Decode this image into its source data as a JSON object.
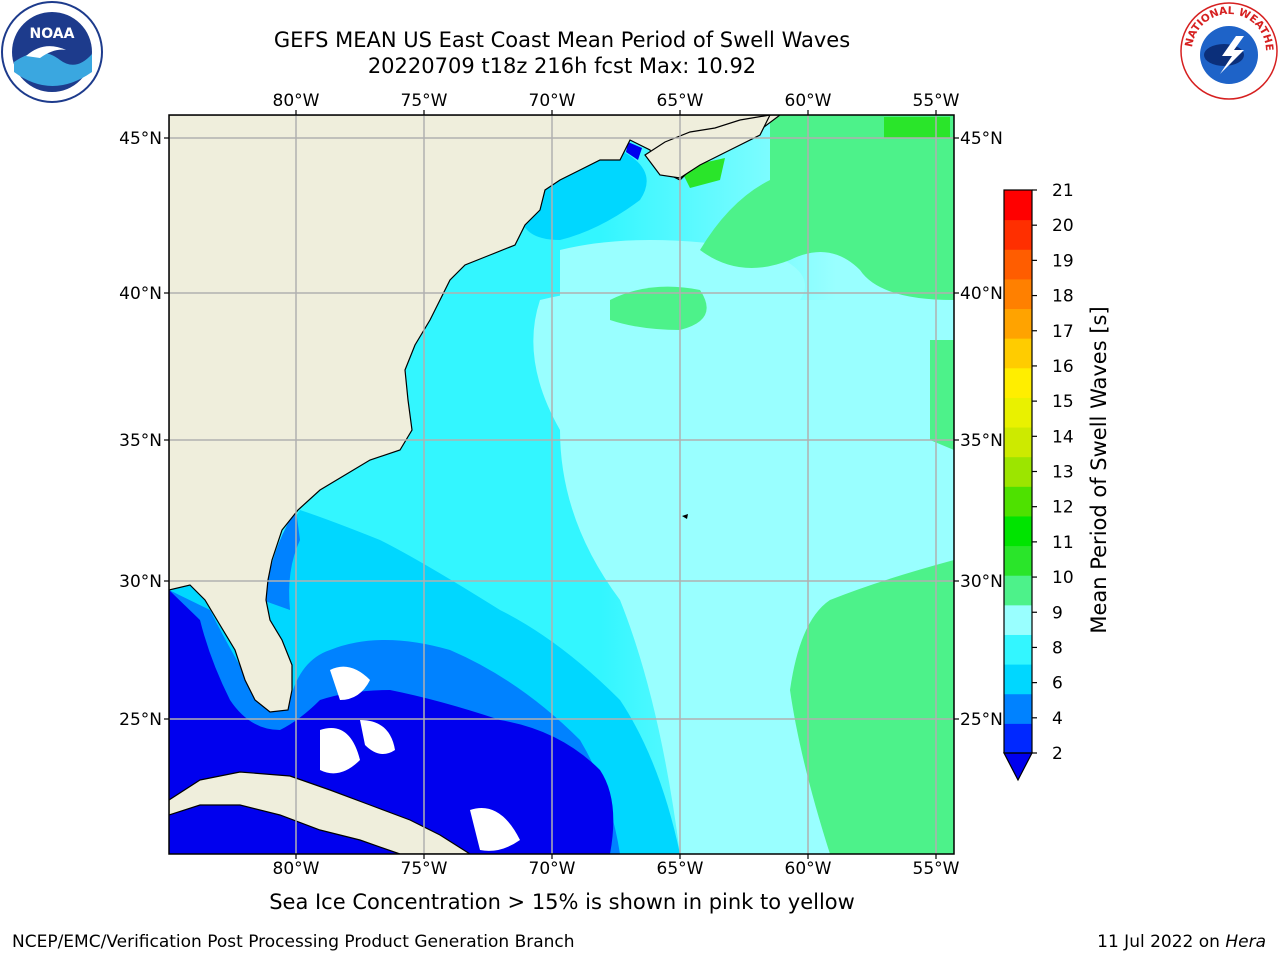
{
  "header": {
    "title_line1": "GEFS MEAN US East Coast Mean Period of Swell Waves",
    "title_line2": "20220709 t18z 216h fcst   Max: 10.92"
  },
  "logos": {
    "left": {
      "name": "noaa-logo",
      "text": "NOAA"
    },
    "right": {
      "name": "nws-logo",
      "text": "NATIONAL WEATHER SERVICE"
    }
  },
  "map": {
    "lon_labels": [
      "80°W",
      "75°W",
      "70°W",
      "65°W",
      "60°W",
      "55°W"
    ],
    "lat_labels": [
      "45°N",
      "40°N",
      "35°N",
      "30°N",
      "25°N"
    ],
    "colors": {
      "land": "#efeedc",
      "gridline": "#b0b0b0",
      "no_data": "#ffffff"
    }
  },
  "colorbar": {
    "label": "Mean Period of Swell Waves [s]",
    "ticks": [
      "2",
      "4",
      "6",
      "8",
      "9",
      "10",
      "11",
      "12",
      "13",
      "14",
      "15",
      "16",
      "17",
      "18",
      "19",
      "20",
      "21"
    ],
    "colors": [
      "#0028ff",
      "#0082ff",
      "#00d7ff",
      "#33f6ff",
      "#99ffff",
      "#4df28a",
      "#2ae52a",
      "#00e400",
      "#4ee100",
      "#9ce500",
      "#cdea00",
      "#e9f100",
      "#ffee00",
      "#ffcc00",
      "#ffa300",
      "#ff8000",
      "#ff5d00",
      "#ff2f00",
      "#ff0000"
    ],
    "under_color": "#0000ee"
  },
  "note": "Sea Ice Concentration > 15% is shown in pink to yellow",
  "footer": {
    "left": "NCEP/EMC/Verification Post Processing Product Generation Branch",
    "right_prefix": "11 Jul 2022 on ",
    "right_machine": "Hera"
  }
}
